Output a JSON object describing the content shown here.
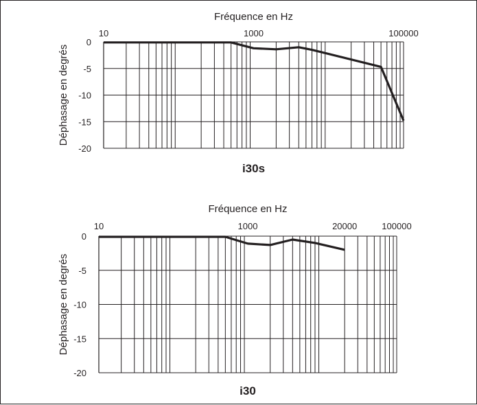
{
  "colors": {
    "ink": "#231f20",
    "background": "#ffffff"
  },
  "chart_data": [
    {
      "type": "line",
      "caption": "i30s",
      "xlabel": "Fréquence en Hz",
      "ylabel": "Déphasage en degrés",
      "x_scale": "log",
      "xlim": [
        10,
        100000
      ],
      "ylim": [
        -20,
        0
      ],
      "x_tick_labels": [
        {
          "value": 10,
          "label": "10"
        },
        {
          "value": 1000,
          "label": "1000"
        },
        {
          "value": 100000,
          "label": "100000"
        }
      ],
      "y_ticks": [
        0,
        -5,
        -10,
        -15,
        -20
      ],
      "grid": true,
      "series": [
        {
          "x": [
            10,
            500,
            1000,
            2000,
            4000,
            6000,
            50000,
            100000
          ],
          "y": [
            -0.1,
            -0.1,
            -1.2,
            -1.4,
            -1.0,
            -1.5,
            -4.7,
            -14.8
          ]
        }
      ]
    },
    {
      "type": "line",
      "caption": "i30",
      "xlabel": "Fréquence en Hz",
      "ylabel": "Déphasage en degrés",
      "x_scale": "log",
      "xlim": [
        10,
        100000
      ],
      "ylim": [
        -20,
        0
      ],
      "x_tick_labels": [
        {
          "value": 10,
          "label": "10"
        },
        {
          "value": 1000,
          "label": "1000"
        },
        {
          "value": 20000,
          "label": "20000"
        },
        {
          "value": 100000,
          "label": "100000"
        }
      ],
      "y_ticks": [
        0,
        -5,
        -10,
        -15,
        -20
      ],
      "grid": true,
      "series": [
        {
          "x": [
            10,
            500,
            1000,
            2000,
            4000,
            8000,
            20000
          ],
          "y": [
            -0.1,
            -0.1,
            -1.1,
            -1.3,
            -0.5,
            -1.0,
            -2.0
          ]
        }
      ]
    }
  ]
}
